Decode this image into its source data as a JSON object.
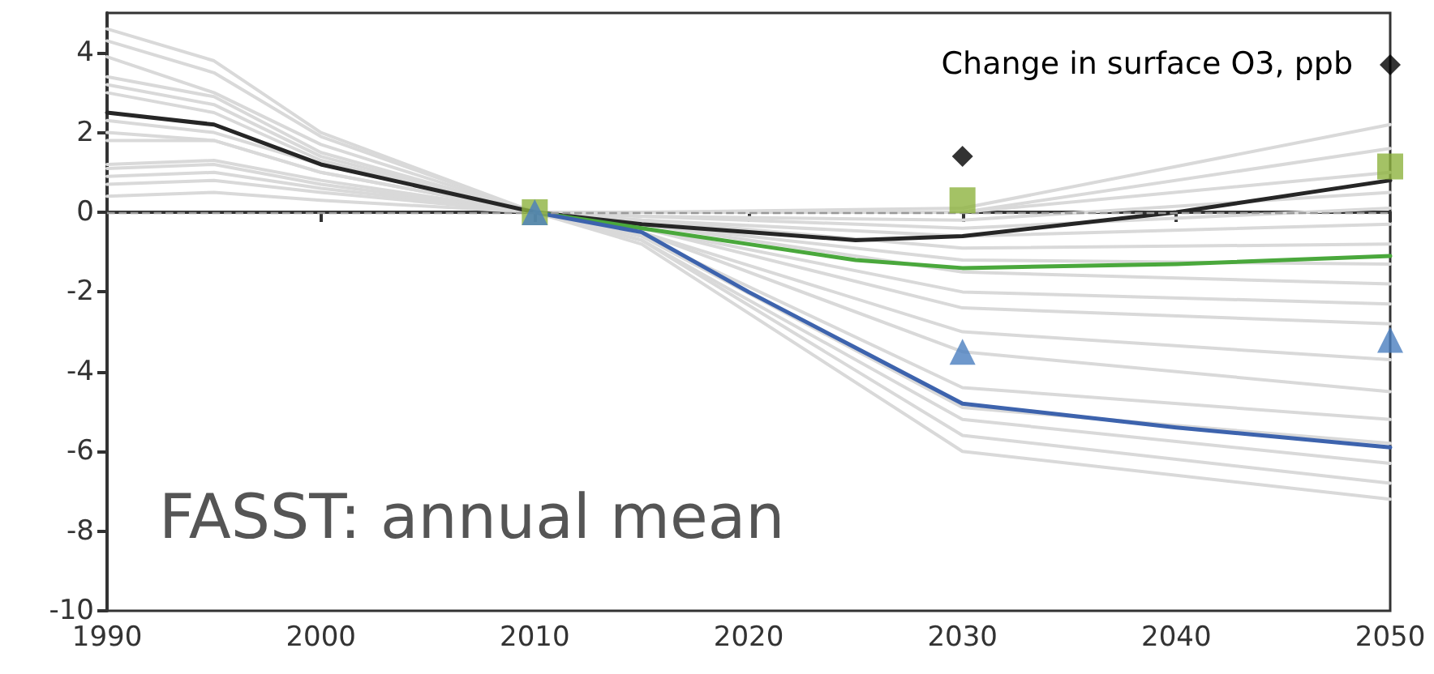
{
  "chart_data": {
    "type": "line",
    "annotations": [
      "Change in surface O3, ppb",
      "FASST: annual mean"
    ],
    "xlim": [
      1990,
      2050
    ],
    "xticks": [
      1990,
      2000,
      2010,
      2020,
      2030,
      2040,
      2050
    ],
    "ylim": [
      -10,
      5
    ],
    "yticks": [
      -10,
      -8,
      -6,
      -4,
      -2,
      0,
      2,
      4
    ],
    "grid": false,
    "marker": "none",
    "line_style": "solid",
    "ref_lines": [
      {
        "axis": "y",
        "value": 0,
        "color": "#999999",
        "line_style": "dashed"
      }
    ],
    "series": [
      {
        "color": "#d9d9d9",
        "x": [
          1990,
          1995,
          2000,
          2010
        ],
        "values": [
          4.6,
          3.8,
          2.0,
          0
        ]
      },
      {
        "color": "#d9d9d9",
        "x": [
          1990,
          1995,
          2000,
          2010
        ],
        "values": [
          4.3,
          3.5,
          1.9,
          0
        ]
      },
      {
        "color": "#d9d9d9",
        "x": [
          1990,
          1995,
          2000,
          2010
        ],
        "values": [
          3.9,
          3.0,
          1.7,
          0
        ]
      },
      {
        "color": "#d9d9d9",
        "x": [
          1990,
          1995,
          2000,
          2010
        ],
        "values": [
          3.4,
          2.9,
          1.5,
          0
        ]
      },
      {
        "color": "#d9d9d9",
        "x": [
          1990,
          1995,
          2000,
          2010
        ],
        "values": [
          3.2,
          2.7,
          1.4,
          0
        ]
      },
      {
        "color": "#d9d9d9",
        "x": [
          1990,
          1995,
          2000,
          2010
        ],
        "values": [
          3.0,
          2.5,
          1.3,
          0
        ]
      },
      {
        "color": "#d9d9d9",
        "x": [
          1990,
          1995,
          2000,
          2010
        ],
        "values": [
          2.3,
          2.0,
          1.2,
          0
        ]
      },
      {
        "color": "#d9d9d9",
        "x": [
          1990,
          1995,
          2000,
          2010
        ],
        "values": [
          2.0,
          1.8,
          1.0,
          0
        ]
      },
      {
        "color": "#d9d9d9",
        "x": [
          1990,
          1995,
          2000,
          2010
        ],
        "values": [
          1.8,
          1.8,
          1.0,
          0
        ]
      },
      {
        "color": "#d9d9d9",
        "x": [
          1990,
          1995,
          2000,
          2010
        ],
        "values": [
          1.2,
          1.3,
          0.8,
          0
        ]
      },
      {
        "color": "#d9d9d9",
        "x": [
          1990,
          1995,
          2000,
          2010
        ],
        "values": [
          1.1,
          1.2,
          0.7,
          0
        ]
      },
      {
        "color": "#d9d9d9",
        "x": [
          1990,
          1995,
          2000,
          2010
        ],
        "values": [
          0.9,
          1.0,
          0.6,
          0
        ]
      },
      {
        "color": "#d9d9d9",
        "x": [
          1990,
          1995,
          2000,
          2010
        ],
        "values": [
          0.7,
          0.8,
          0.5,
          0
        ]
      },
      {
        "color": "#d9d9d9",
        "x": [
          1990,
          1995,
          2000,
          2010
        ],
        "values": [
          0.4,
          0.5,
          0.3,
          0
        ]
      },
      {
        "color": "#d9d9d9",
        "x": [
          2010,
          2015,
          2030,
          2050
        ],
        "values": [
          0,
          0,
          0.1,
          2.2
        ]
      },
      {
        "color": "#d9d9d9",
        "x": [
          2010,
          2015,
          2030,
          2050
        ],
        "values": [
          0,
          0,
          0,
          1.6
        ]
      },
      {
        "color": "#d9d9d9",
        "x": [
          2010,
          2015,
          2030,
          2050
        ],
        "values": [
          0,
          0,
          0,
          1.0
        ]
      },
      {
        "color": "#d9d9d9",
        "x": [
          2010,
          2015,
          2030,
          2050
        ],
        "values": [
          0,
          -0.1,
          -0.2,
          0.5
        ]
      },
      {
        "color": "#d9d9d9",
        "x": [
          2010,
          2015,
          2030,
          2050
        ],
        "values": [
          0,
          -0.1,
          -0.4,
          0.1
        ]
      },
      {
        "color": "#d9d9d9",
        "x": [
          2010,
          2015,
          2030,
          2050
        ],
        "values": [
          0,
          -0.2,
          -0.6,
          -0.3
        ]
      },
      {
        "color": "#d9d9d9",
        "x": [
          2010,
          2015,
          2030,
          2050
        ],
        "values": [
          0,
          -0.2,
          -0.9,
          -0.8
        ]
      },
      {
        "color": "#d9d9d9",
        "x": [
          2010,
          2015,
          2030,
          2050
        ],
        "values": [
          0,
          -0.3,
          -1.2,
          -1.3
        ]
      },
      {
        "color": "#d9d9d9",
        "x": [
          2010,
          2015,
          2030,
          2050
        ],
        "values": [
          0,
          -0.3,
          -1.5,
          -1.8
        ]
      },
      {
        "color": "#d9d9d9",
        "x": [
          2010,
          2015,
          2030,
          2050
        ],
        "values": [
          0,
          -0.4,
          -2.0,
          -2.3
        ]
      },
      {
        "color": "#d9d9d9",
        "x": [
          2010,
          2015,
          2030,
          2050
        ],
        "values": [
          0,
          -0.4,
          -2.4,
          -2.8
        ]
      },
      {
        "color": "#d9d9d9",
        "x": [
          2010,
          2015,
          2030,
          2050
        ],
        "values": [
          0,
          -0.5,
          -3.0,
          -3.7
        ]
      },
      {
        "color": "#d9d9d9",
        "x": [
          2010,
          2015,
          2030,
          2050
        ],
        "values": [
          0,
          -0.5,
          -3.5,
          -4.5
        ]
      },
      {
        "color": "#d9d9d9",
        "x": [
          2010,
          2015,
          2030,
          2050
        ],
        "values": [
          0,
          -0.6,
          -4.4,
          -5.2
        ]
      },
      {
        "color": "#d9d9d9",
        "x": [
          2010,
          2015,
          2030,
          2050
        ],
        "values": [
          0,
          -0.6,
          -4.9,
          -5.8
        ]
      },
      {
        "color": "#d9d9d9",
        "x": [
          2010,
          2015,
          2030,
          2050
        ],
        "values": [
          0,
          -0.7,
          -5.2,
          -6.3
        ]
      },
      {
        "color": "#d9d9d9",
        "x": [
          2010,
          2015,
          2030,
          2050
        ],
        "values": [
          0,
          -0.7,
          -5.6,
          -6.8
        ]
      },
      {
        "color": "#d9d9d9",
        "x": [
          2010,
          2015,
          2030,
          2050
        ],
        "values": [
          0,
          -0.8,
          -6.0,
          -7.2
        ]
      },
      {
        "color": "#262626",
        "x": [
          1990,
          1995,
          2000,
          2005,
          2010,
          2015,
          2020,
          2025,
          2030,
          2040,
          2050
        ],
        "values": [
          2.5,
          2.2,
          1.2,
          0.6,
          0,
          -0.3,
          -0.5,
          -0.7,
          -0.6,
          0.0,
          0.8
        ]
      },
      {
        "color": "#4aa83c",
        "x": [
          2010,
          2015,
          2020,
          2025,
          2030,
          2040,
          2050
        ],
        "values": [
          0,
          -0.4,
          -0.8,
          -1.2,
          -1.4,
          -1.3,
          -1.1
        ]
      },
      {
        "color": "#3d63ad",
        "x": [
          2010,
          2015,
          2020,
          2025,
          2030,
          2040,
          2050
        ],
        "values": [
          0,
          -0.5,
          -2.0,
          -3.4,
          -4.8,
          -5.4,
          -5.9
        ]
      },
      {
        "type": "scatter",
        "marker": "square",
        "color": "#8db33f",
        "x": [
          2010,
          2030,
          2050
        ],
        "values": [
          0,
          0.3,
          1.15
        ]
      },
      {
        "type": "scatter",
        "marker": "triangle",
        "color": "#4a7ebf",
        "x": [
          2010,
          2030,
          2050
        ],
        "values": [
          0,
          -3.5,
          -3.2
        ]
      },
      {
        "type": "scatter",
        "marker": "diamond",
        "color": "#000000",
        "x": [
          2030,
          2050
        ],
        "values": [
          1.4,
          3.7
        ]
      }
    ]
  }
}
